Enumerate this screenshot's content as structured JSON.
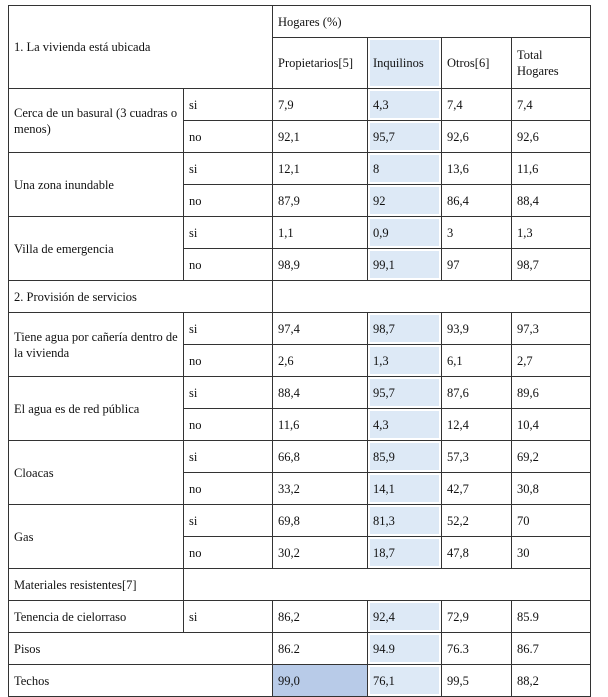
{
  "table": {
    "header": {
      "section": "1. La vivienda está ubicada",
      "group": "Hogares (%)",
      "columns": [
        "Propietarios[5]",
        "Inquilinos",
        "Otros[6]",
        "Total Hogares"
      ]
    },
    "rows": [
      {
        "label": "Cerca de un basural (3 cuadras o menos)",
        "sub": [
          {
            "key": "si",
            "values": [
              "7,9",
              "4,3",
              "7,4",
              "7,4"
            ]
          },
          {
            "key": "no",
            "values": [
              "92,1",
              "95,7",
              "92,6",
              "92,6"
            ]
          }
        ]
      },
      {
        "label": "Una zona inundable",
        "sub": [
          {
            "key": "si",
            "values": [
              "12,1",
              "8",
              "13,6",
              "11,6"
            ]
          },
          {
            "key": "no",
            "values": [
              "87,9",
              "92",
              "86,4",
              "88,4"
            ]
          }
        ]
      },
      {
        "label": "Villa de emergencia",
        "sub": [
          {
            "key": "si",
            "values": [
              "1,1",
              "0,9",
              "3",
              "1,3"
            ]
          },
          {
            "key": "no",
            "values": [
              "98,9",
              "99,1",
              "97",
              "98,7"
            ]
          }
        ]
      },
      {
        "section": "2. Provisión de servicios"
      },
      {
        "label": "Tiene agua por cañería dentro de la vivienda",
        "sub": [
          {
            "key": "si",
            "values": [
              "97,4",
              "98,7",
              "93,9",
              "97,3"
            ]
          },
          {
            "key": "no",
            "values": [
              "2,6",
              "1,3",
              "6,1",
              "2,7"
            ]
          }
        ]
      },
      {
        "label": "El agua es de red pública",
        "sub": [
          {
            "key": "si",
            "values": [
              "88,4",
              "95,7",
              "87,6",
              "89,6"
            ]
          },
          {
            "key": "no",
            "values": [
              "11,6",
              "4,3",
              "12,4",
              "10,4"
            ]
          }
        ]
      },
      {
        "label": "Cloacas",
        "sub": [
          {
            "key": "si",
            "values": [
              "66,8",
              "85,9",
              "57,3",
              "69,2"
            ]
          },
          {
            "key": "no",
            "values": [
              "33,2",
              "14,1",
              "42,7",
              "30,8"
            ]
          }
        ]
      },
      {
        "label": "Gas",
        "sub": [
          {
            "key": "si",
            "values": [
              "69,8",
              "81,3",
              "52,2",
              "70"
            ]
          },
          {
            "key": "no",
            "values": [
              "30,2",
              "18,7",
              "47,8",
              "30"
            ]
          }
        ]
      },
      {
        "subsection": "Materiales resistentes[7]"
      },
      {
        "label": "Tenencia de cielorraso",
        "sub": [
          {
            "key": "si",
            "values": [
              "86,2",
              "92,4",
              "72,9",
              "85.9"
            ]
          }
        ]
      },
      {
        "label": "Pisos",
        "values": [
          "86.2",
          "94.9",
          "76.3",
          "86.7"
        ]
      },
      {
        "label": "Techos",
        "values": [
          "99,0",
          "76,1",
          "99,5",
          "88,2"
        ]
      }
    ]
  }
}
